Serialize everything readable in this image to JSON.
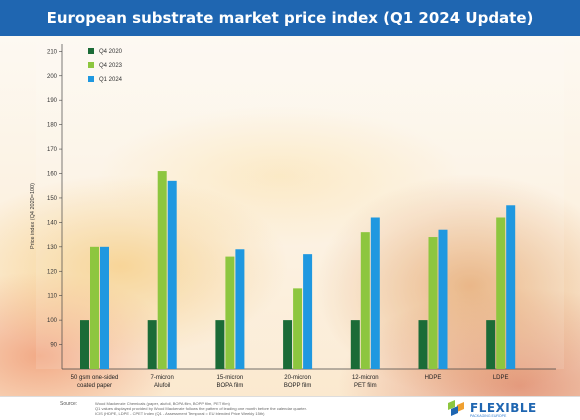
{
  "header": {
    "title": "European substrate market price index (Q1 2024 Update)"
  },
  "chart_data": {
    "type": "bar",
    "title": "European substrate market price index (Q1 2024 Update)",
    "ylabel": "Price index (Q4 2020=100)",
    "xlabel": "",
    "ylim": [
      80,
      213
    ],
    "yticks": [
      90,
      100,
      110,
      120,
      130,
      140,
      150,
      160,
      170,
      180,
      190,
      200,
      210
    ],
    "grid": false,
    "legend_position": "top-left",
    "categories": [
      [
        "50 gsm one-sided",
        "coated paper"
      ],
      [
        "7-micron",
        "Alufoil"
      ],
      [
        "15-micron",
        "BOPA film"
      ],
      [
        "20-micron",
        "BOPP film"
      ],
      [
        "12-micron",
        "PET film"
      ],
      [
        "HDPE"
      ],
      [
        "LDPE"
      ]
    ],
    "series": [
      {
        "name": "Q4 2020",
        "color": "#1b6b37",
        "values": [
          100,
          100,
          100,
          100,
          100,
          100,
          100
        ]
      },
      {
        "name": "Q4 2023",
        "color": "#8dc63f",
        "values": [
          130,
          161,
          126,
          113,
          136,
          134,
          142
        ]
      },
      {
        "name": "Q1 2024",
        "color": "#1f98e0",
        "values": [
          130,
          157,
          129,
          127,
          142,
          137,
          147
        ]
      }
    ]
  },
  "footer": {
    "source_label": "Source:",
    "source_lines": [
      "Wood Mackenzie Chemicals (paper, alufoil, BOPA film, BOPP film, PET film)",
      "Q1 values displayed provided by Wood Mackenzie follows the pattern of leading one month before the calendar quarter.",
      "ICIS (HDPE, LDPE - CPET Index (Q1 - Assessment Temporal = EU blended Price Weekly 15th)"
    ],
    "brand": "FLEXIBLE",
    "brand_sub": "PACKAGING EUROPE",
    "brand_colors": {
      "blue": "#1f66b1",
      "green": "#8dc63f",
      "orange": "#f0a030"
    }
  }
}
